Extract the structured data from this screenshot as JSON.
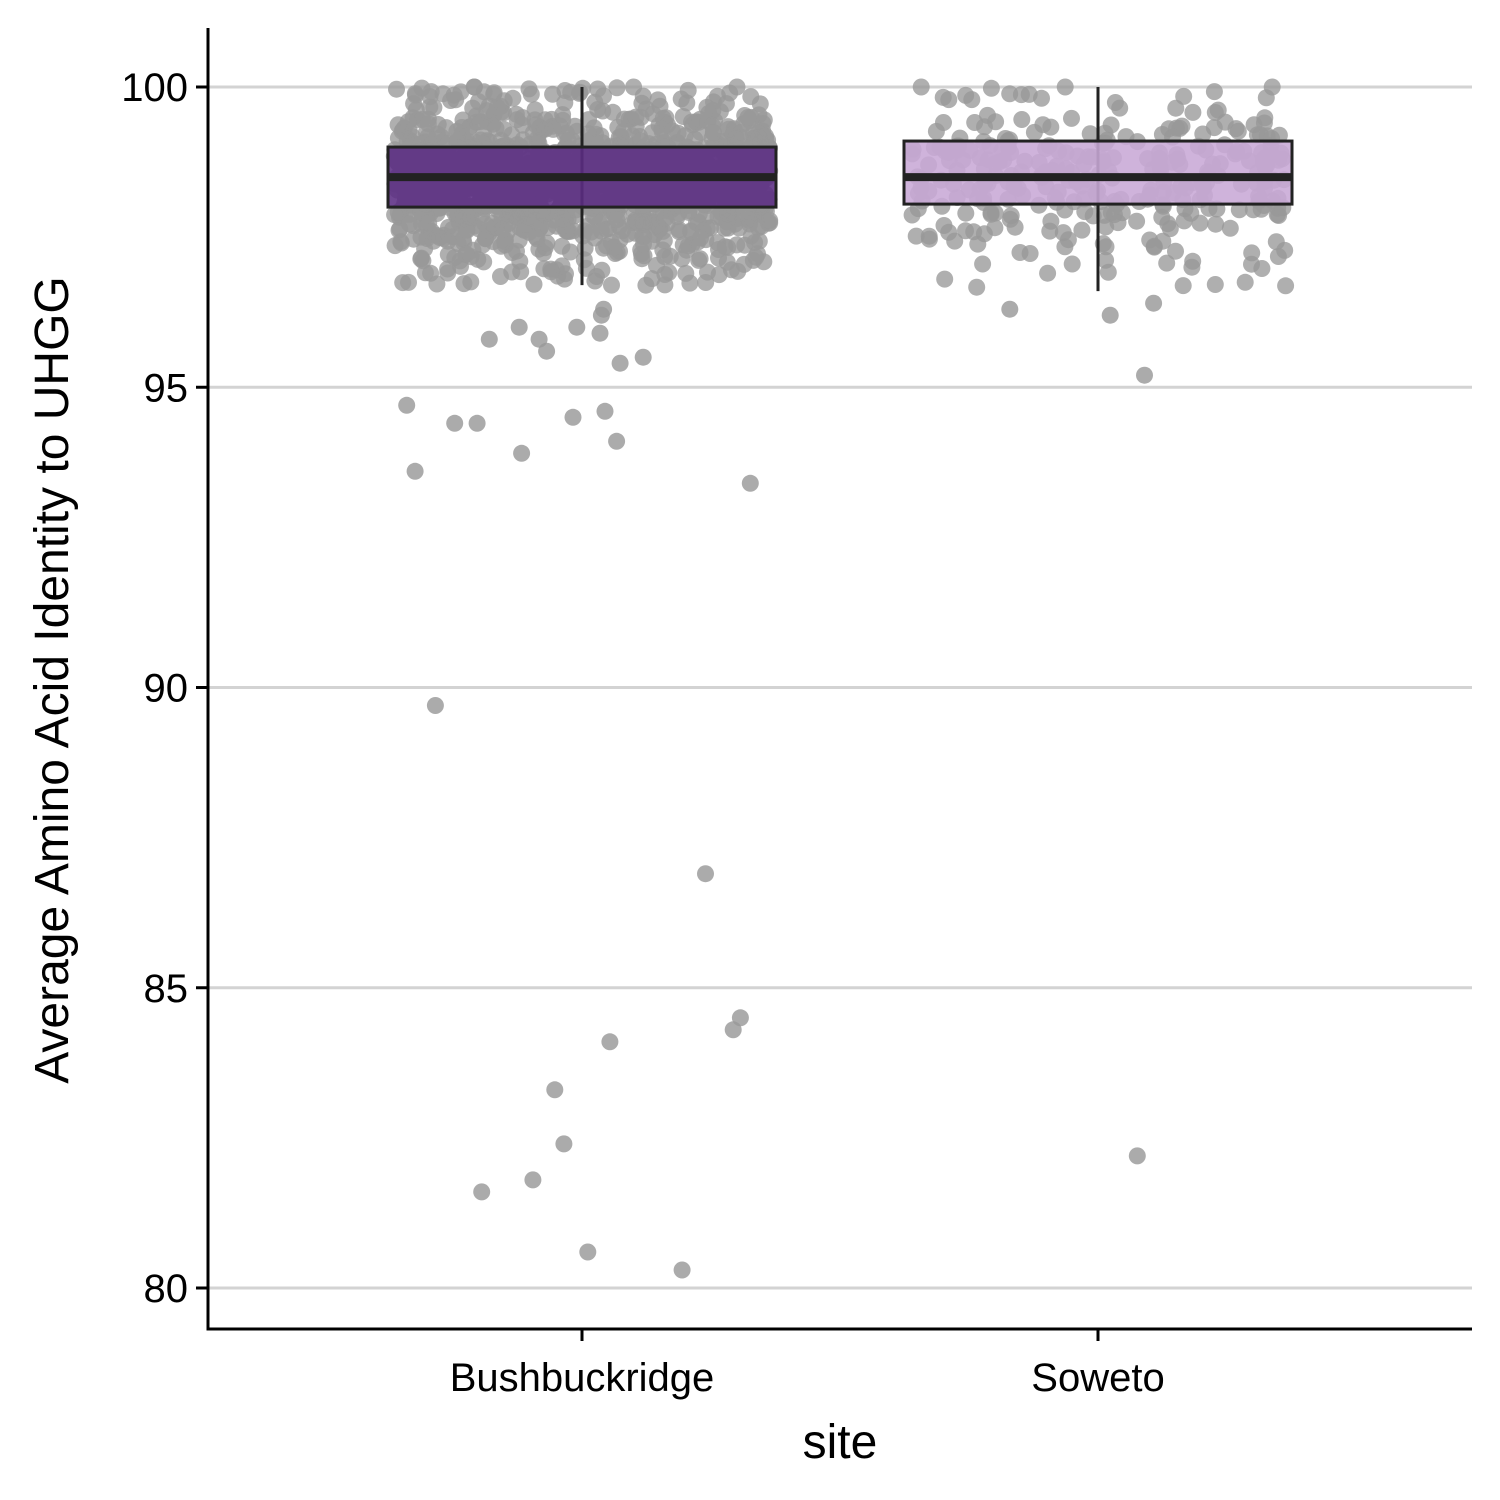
{
  "chart_data": {
    "type": "boxplot",
    "title": "",
    "xlabel": "site",
    "ylabel": "Average Amino Acid Identity to UHGG",
    "ylim": [
      79.3,
      101.0
    ],
    "yticks": [
      80,
      85,
      90,
      95,
      100
    ],
    "grid": {
      "horizontal": true,
      "vertical": false
    },
    "legend": "none",
    "point_color": "#999999",
    "categories": [
      "Bushbuckridge",
      "Soweto"
    ],
    "boxes": [
      {
        "name": "Bushbuckridge",
        "fill": "#5B2C83",
        "whisker_low": 96.7,
        "q1": 98.0,
        "median": 98.5,
        "q3": 99.0,
        "whisker_high": 100.0,
        "point_count": 1400,
        "outliers": [
          96.3,
          96.0,
          95.8,
          95.6,
          95.5,
          95.4,
          95.8,
          96.2,
          95.9,
          96.0,
          94.7,
          94.5,
          94.4,
          94.6,
          94.1,
          93.9,
          94.4,
          93.6,
          93.4,
          89.7,
          86.9,
          84.5,
          84.3,
          84.1,
          83.3,
          82.4,
          81.8,
          81.6,
          80.6,
          80.3
        ]
      },
      {
        "name": "Soweto",
        "fill": "#C8A9D6",
        "whisker_low": 96.6,
        "q1": 98.05,
        "median": 98.5,
        "q3": 99.1,
        "whisker_high": 100.0,
        "point_count": 300,
        "outliers": [
          96.4,
          96.3,
          96.2,
          95.2,
          82.2
        ]
      }
    ]
  }
}
